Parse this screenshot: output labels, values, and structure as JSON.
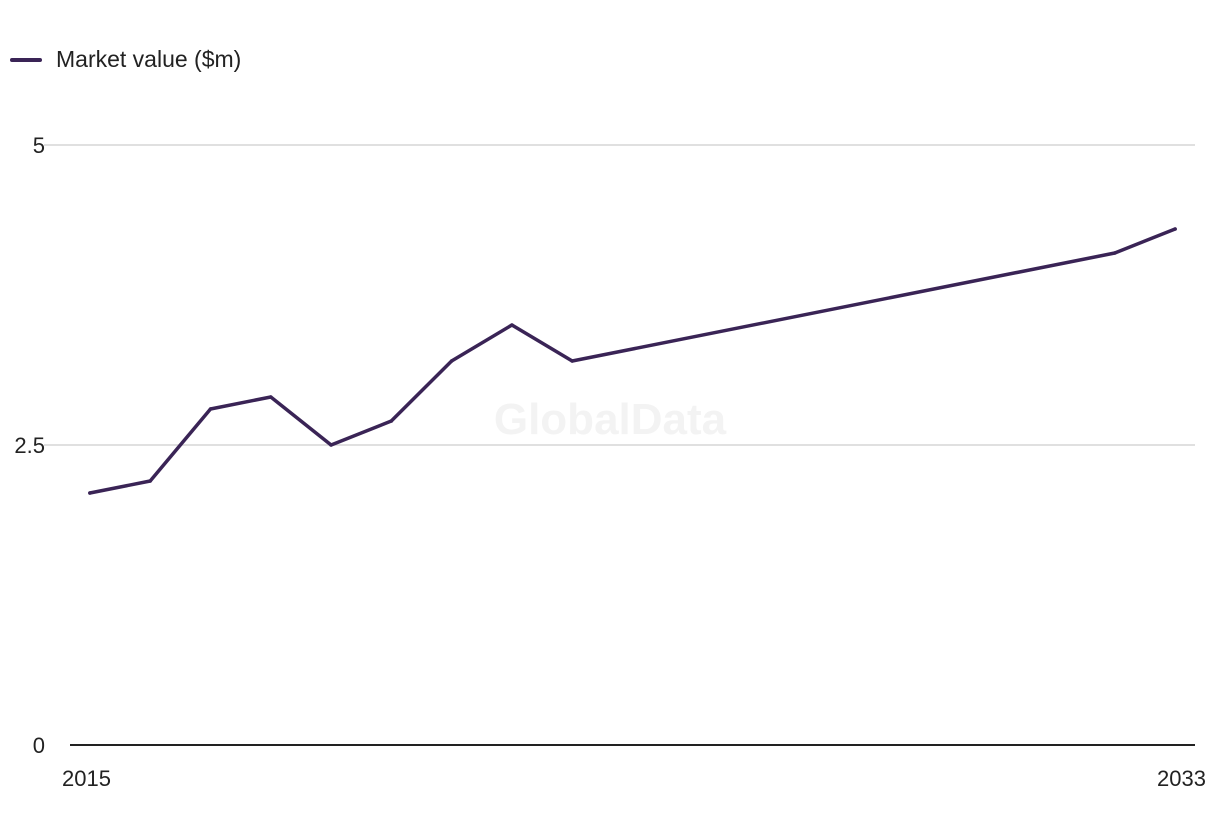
{
  "chart_data": {
    "type": "line",
    "title": "",
    "xlabel": "",
    "ylabel": "",
    "x": [
      2015,
      2016,
      2017,
      2018,
      2019,
      2020,
      2021,
      2022,
      2023,
      2032,
      2033
    ],
    "series": [
      {
        "name": "Market value ($m)",
        "color": "#3a2456",
        "values": [
          2.1,
          2.2,
          2.8,
          2.9,
          2.5,
          2.7,
          3.2,
          3.5,
          3.2,
          4.1,
          4.3
        ]
      }
    ],
    "xlim": [
      2014.67,
      2033.33
    ],
    "ylim": [
      0,
      5
    ],
    "x_ticks": [
      2015,
      2033
    ],
    "x_tick_labels": [
      "2015",
      "2033"
    ],
    "y_ticks": [
      0,
      2.5,
      5
    ],
    "y_tick_labels": [
      "0",
      "2.5",
      "5"
    ],
    "grid": "horizontal",
    "legend_position": "top-left",
    "watermark": "GlobalData"
  }
}
